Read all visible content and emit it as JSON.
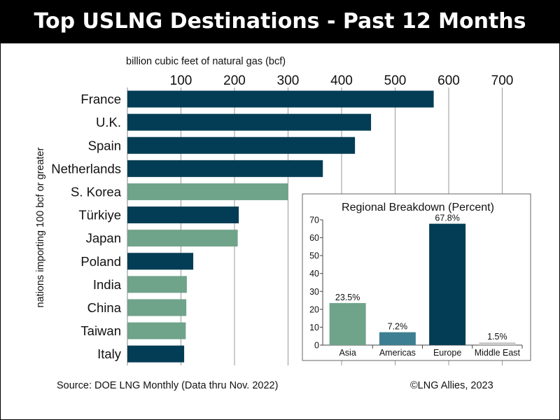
{
  "title": "Top USLNG Destinations - Past 12 Months",
  "source": "Source: DOE LNG Monthly (Data thru Nov. 2022)",
  "credit": "©LNG Allies, 2023",
  "colors": {
    "europe": "#033d55",
    "asia": "#6fa38a",
    "americas": "#3e7e92",
    "middle_east": "#c8cac8"
  },
  "chart_data": [
    {
      "type": "bar",
      "orientation": "horizontal",
      "title": "Top USLNG Destinations - Past 12 Months",
      "xlabel": "billion cubic feet of natural gas (bcf)",
      "ylabel": "nations importing 100 bcf or greater",
      "xlim": [
        0,
        720
      ],
      "xticks": [
        100,
        200,
        300,
        400,
        500,
        600,
        700
      ],
      "grid": true,
      "categories": [
        "France",
        "U.K.",
        "Spain",
        "Netherlands",
        "S. Korea",
        "Türkiye",
        "Japan",
        "Poland",
        "India",
        "China",
        "Taiwan",
        "Italy"
      ],
      "values": [
        572,
        455,
        425,
        365,
        300,
        208,
        206,
        123,
        111,
        110,
        109,
        106
      ],
      "region": [
        "europe",
        "europe",
        "europe",
        "europe",
        "asia",
        "europe",
        "asia",
        "europe",
        "asia",
        "asia",
        "asia",
        "europe"
      ]
    },
    {
      "type": "bar",
      "title": "Regional Breakdown (Percent)",
      "categories": [
        "Asia",
        "Americas",
        "Europe",
        "Middle East"
      ],
      "values": [
        23.5,
        7.2,
        67.8,
        1.5
      ],
      "data_labels": [
        "23.5%",
        "7.2%",
        "67.8%",
        "1.5%"
      ],
      "region": [
        "asia",
        "americas",
        "europe",
        "middle_east"
      ],
      "ylim": [
        0,
        70
      ],
      "yticks": [
        0,
        10,
        20,
        30,
        40,
        50,
        60,
        70
      ]
    }
  ]
}
